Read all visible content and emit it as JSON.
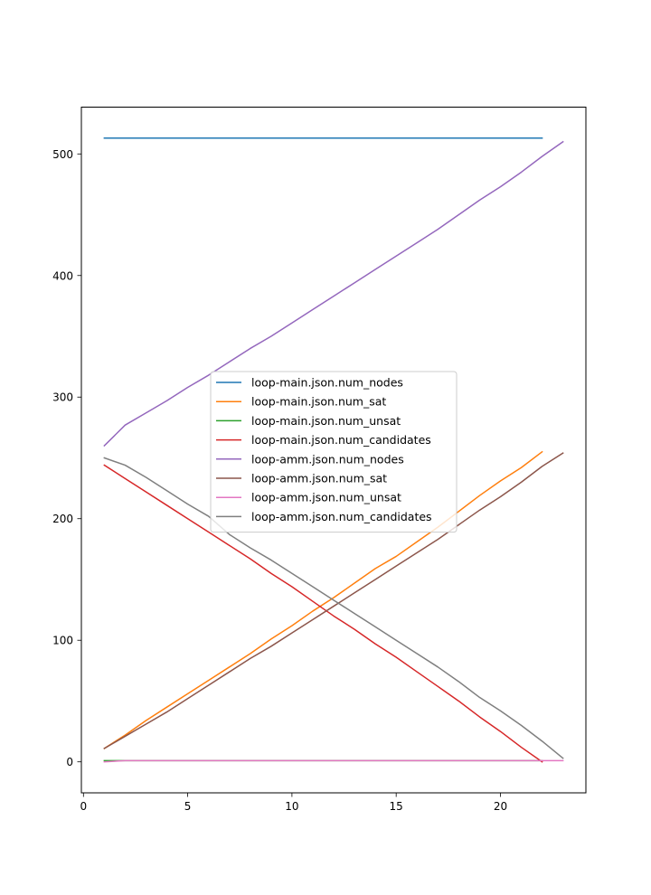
{
  "chart_data": {
    "type": "line",
    "title": "",
    "xlabel": "",
    "ylabel": "",
    "xlim": [
      -0.1,
      24.1
    ],
    "ylim": [
      -25.5,
      538.5
    ],
    "xticks": [
      0,
      5,
      10,
      15,
      20
    ],
    "yticks": [
      0,
      100,
      200,
      300,
      400,
      500
    ],
    "grid": false,
    "legend_position": "center",
    "series": [
      {
        "name": "loop-main.json.num_nodes",
        "color": "#1f77b4",
        "x": [
          1,
          2,
          3,
          4,
          5,
          6,
          7,
          8,
          9,
          10,
          11,
          12,
          13,
          14,
          15,
          16,
          17,
          18,
          19,
          20,
          21,
          22
        ],
        "y": [
          513,
          513,
          513,
          513,
          513,
          513,
          513,
          513,
          513,
          513,
          513,
          513,
          513,
          513,
          513,
          513,
          513,
          513,
          513,
          513,
          513,
          513
        ]
      },
      {
        "name": "loop-main.json.num_sat",
        "color": "#ff7f0e",
        "x": [
          1,
          2,
          3,
          4,
          5,
          6,
          7,
          8,
          9,
          10,
          11,
          12,
          13,
          14,
          15,
          16,
          17,
          18,
          19,
          20,
          21,
          22
        ],
        "y": [
          11,
          22,
          34,
          45,
          56,
          67,
          78,
          89,
          101,
          112,
          124,
          135,
          147,
          159,
          169,
          181,
          193,
          206,
          219,
          231,
          242,
          255
        ]
      },
      {
        "name": "loop-main.json.num_unsat",
        "color": "#2ca02c",
        "x": [
          1,
          2,
          3,
          4,
          5,
          6,
          7,
          8,
          9,
          10,
          11,
          12,
          13,
          14,
          15,
          16,
          17,
          18,
          19,
          20,
          21,
          22
        ],
        "y": [
          1,
          1,
          1,
          1,
          1,
          1,
          1,
          1,
          1,
          1,
          1,
          1,
          1,
          1,
          1,
          1,
          1,
          1,
          1,
          1,
          1,
          1
        ]
      },
      {
        "name": "loop-main.json.num_candidates",
        "color": "#d62728",
        "x": [
          1,
          2,
          3,
          4,
          5,
          6,
          7,
          8,
          9,
          10,
          11,
          12,
          13,
          14,
          15,
          16,
          17,
          18,
          19,
          20,
          21,
          22
        ],
        "y": [
          244,
          233,
          222,
          211,
          200,
          189,
          178,
          167,
          155,
          144,
          132,
          120,
          109,
          97,
          86,
          74,
          62,
          50,
          37,
          25,
          12,
          0
        ]
      },
      {
        "name": "loop-amm.json.num_nodes",
        "color": "#9467bd",
        "x": [
          1,
          2,
          3,
          4,
          5,
          6,
          7,
          8,
          9,
          10,
          11,
          12,
          13,
          14,
          15,
          16,
          17,
          18,
          19,
          20,
          21,
          22,
          23
        ],
        "y": [
          260,
          277,
          287,
          297,
          308,
          318,
          329,
          340,
          350,
          361,
          372,
          383,
          394,
          405,
          416,
          427,
          438,
          450,
          462,
          473,
          485,
          498,
          510
        ]
      },
      {
        "name": "loop-amm.json.num_sat",
        "color": "#8c564b",
        "x": [
          1,
          2,
          3,
          4,
          5,
          6,
          7,
          8,
          9,
          10,
          11,
          12,
          13,
          14,
          15,
          16,
          17,
          18,
          19,
          20,
          21,
          22,
          23
        ],
        "y": [
          11,
          21,
          31,
          41,
          52,
          63,
          74,
          85,
          95,
          106,
          117,
          128,
          139,
          150,
          161,
          172,
          183,
          195,
          207,
          218,
          230,
          243,
          254
        ]
      },
      {
        "name": "loop-amm.json.num_unsat",
        "color": "#e377c2",
        "x": [
          1,
          2,
          3,
          4,
          5,
          6,
          7,
          8,
          9,
          10,
          11,
          12,
          13,
          14,
          15,
          16,
          17,
          18,
          19,
          20,
          21,
          22,
          23
        ],
        "y": [
          0,
          1,
          1,
          1,
          1,
          1,
          1,
          1,
          1,
          1,
          1,
          1,
          1,
          1,
          1,
          1,
          1,
          1,
          1,
          1,
          1,
          1,
          1
        ]
      },
      {
        "name": "loop-amm.json.num_candidates",
        "color": "#7f7f7f",
        "x": [
          1,
          2,
          3,
          4,
          5,
          6,
          7,
          8,
          9,
          10,
          11,
          12,
          13,
          14,
          15,
          16,
          17,
          18,
          19,
          20,
          21,
          22,
          23
        ],
        "y": [
          250,
          244,
          234,
          223,
          212,
          202,
          187,
          176,
          166,
          155,
          144,
          133,
          122,
          111,
          100,
          89,
          78,
          66,
          53,
          42,
          30,
          17,
          3
        ]
      }
    ]
  }
}
